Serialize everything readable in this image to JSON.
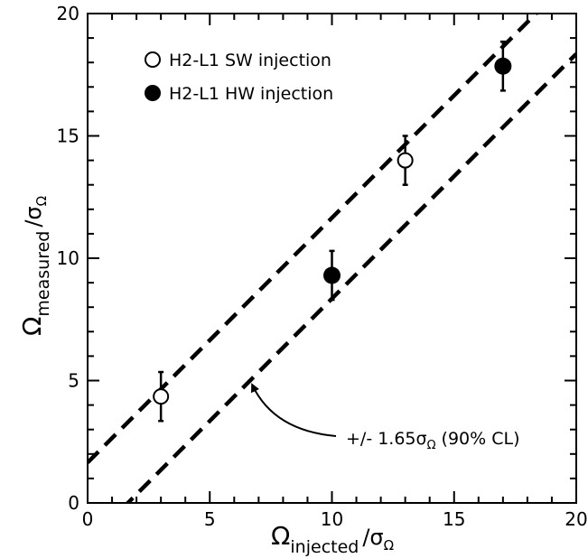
{
  "chart_data": {
    "type": "scatter",
    "title": "",
    "xlabel": {
      "symbol": "Ω",
      "sub": "injected",
      "slash": "/σ",
      "slash_sub": "Ω"
    },
    "ylabel": {
      "symbol": "Ω",
      "sub": "measured",
      "slash": "/σ",
      "slash_sub": "Ω"
    },
    "xlim": [
      0,
      20
    ],
    "ylim": [
      0,
      20
    ],
    "xticks": [
      "0",
      "5",
      "10",
      "15",
      "20"
    ],
    "yticks": [
      "0",
      "5",
      "10",
      "15",
      "20"
    ],
    "grid": false,
    "legend_position": "top-left",
    "series": [
      {
        "name": "H2-L1 SW injection",
        "marker": "open-circle",
        "points": [
          {
            "x": 3,
            "y": 4.35,
            "err": 1.0
          },
          {
            "x": 13,
            "y": 14.0,
            "err": 1.0
          }
        ]
      },
      {
        "name": "H2-L1 HW injection",
        "marker": "filled-circle",
        "points": [
          {
            "x": 10,
            "y": 9.3,
            "err": 1.0
          },
          {
            "x": 17,
            "y": 17.85,
            "err": 1.0
          }
        ]
      }
    ],
    "bands": {
      "style": "dashed",
      "slope": 1,
      "offsets": [
        1.65,
        -1.65
      ]
    },
    "annotation": {
      "text_prefix": "+/- 1.65",
      "sigma": "σ",
      "sigma_sub": "Ω",
      "text_suffix": " (90% CL)",
      "arrow_to": {
        "x": 6.6,
        "y": 4.95
      }
    }
  }
}
